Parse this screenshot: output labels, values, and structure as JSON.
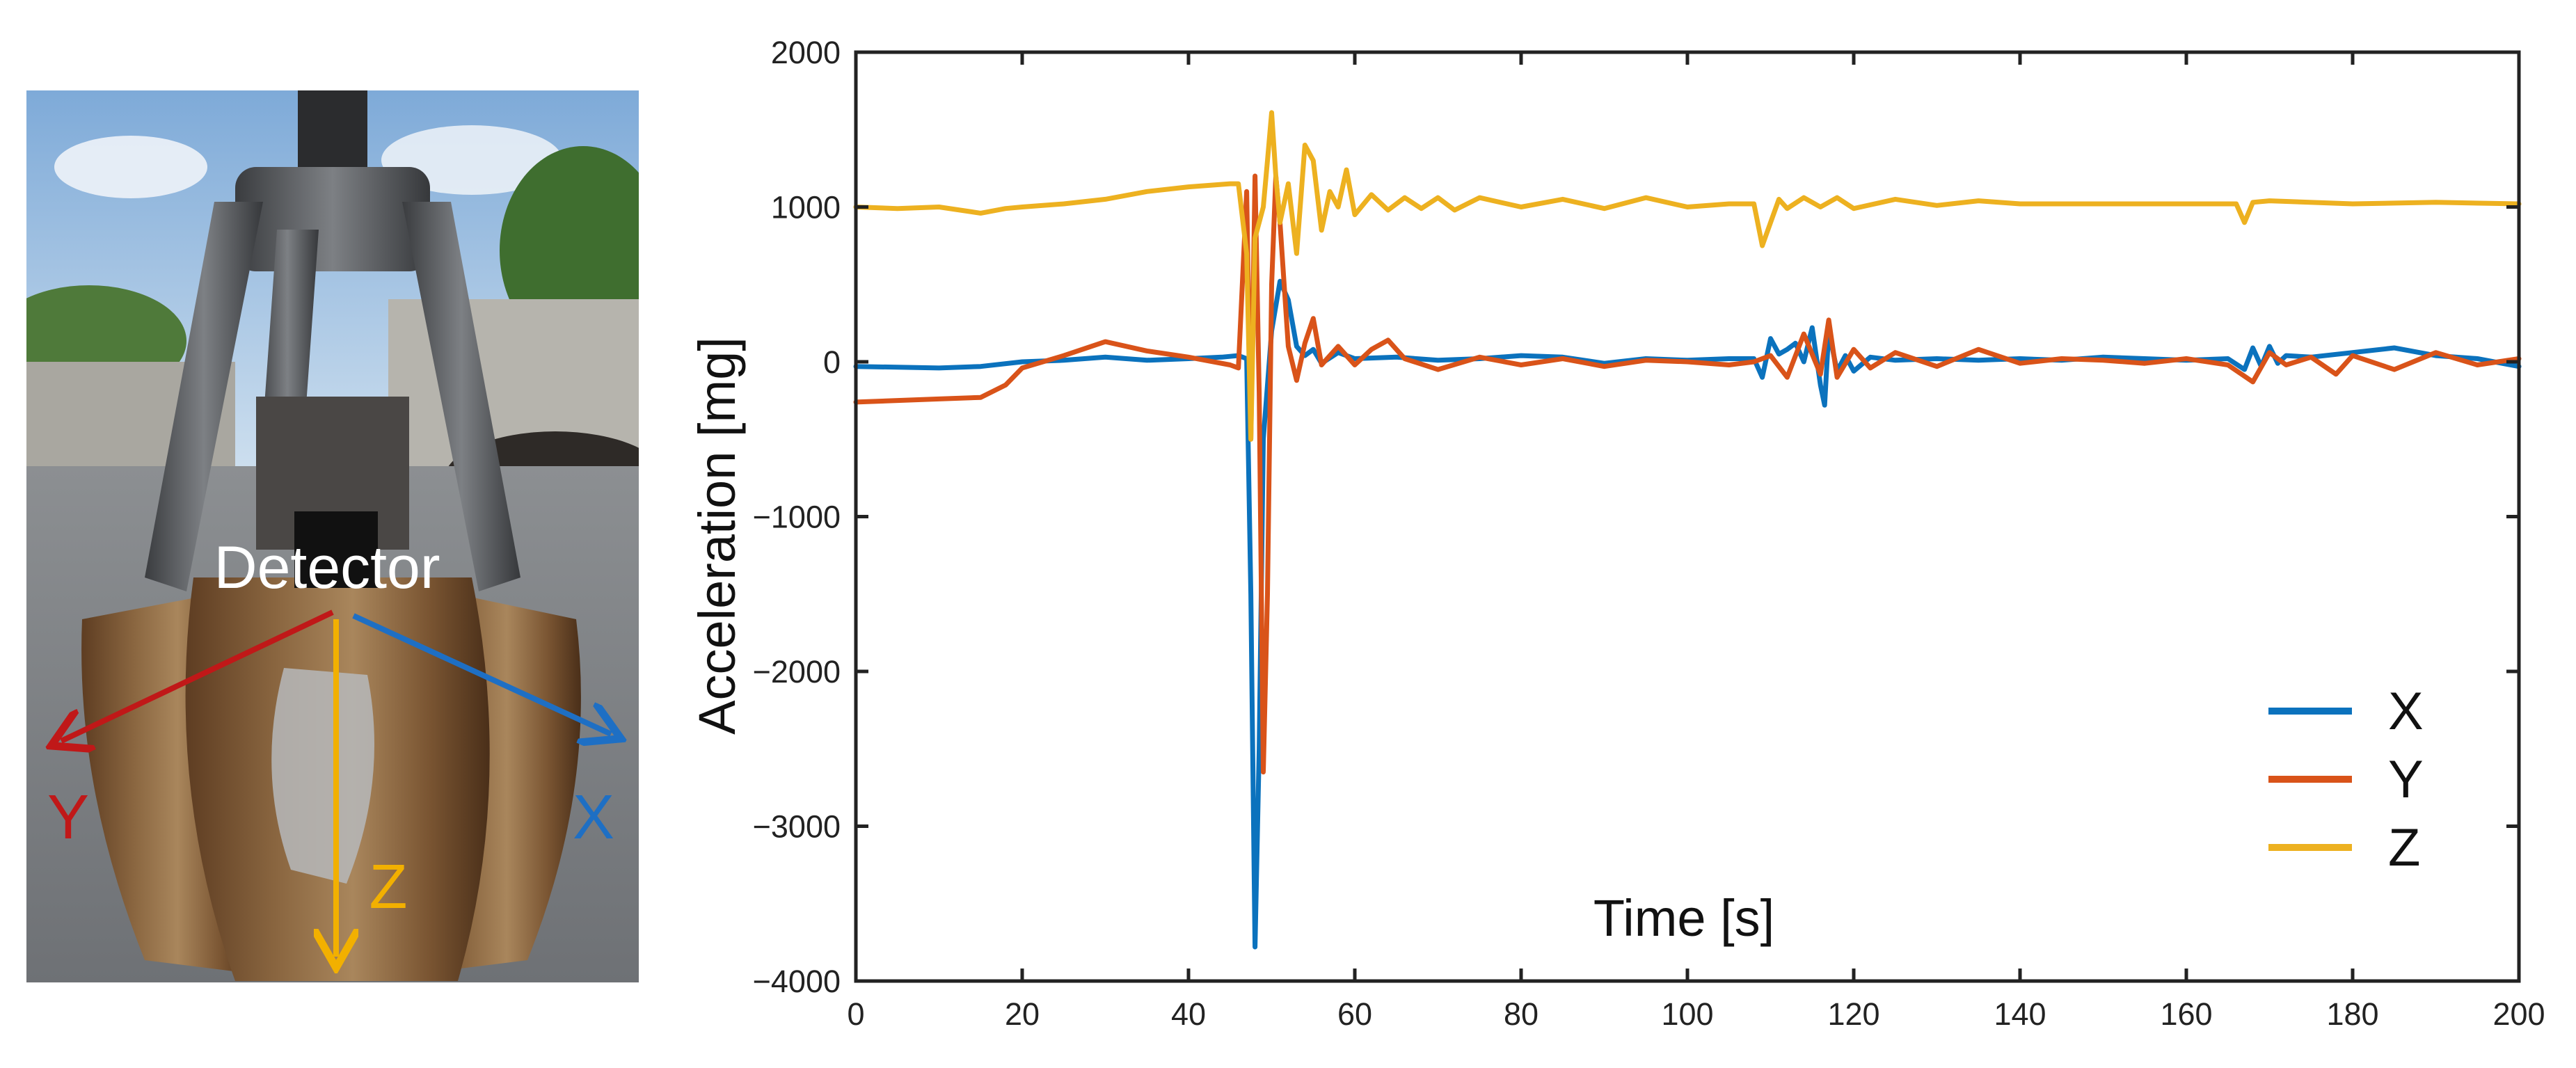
{
  "photo": {
    "detector_label": "Detector",
    "axis_x_label": "X",
    "axis_y_label": "Y",
    "axis_z_label": "Z",
    "colors": {
      "x_arrow": "#1e6fc4",
      "y_arrow": "#c01818",
      "z_arrow": "#f2b000",
      "detector_text": "#ffffff"
    }
  },
  "chart_data": {
    "type": "line",
    "title": "",
    "xlabel": "Time [s]",
    "ylabel": "Acceleration  [mg]",
    "xlim": [
      0,
      200
    ],
    "ylim": [
      -4000,
      2000
    ],
    "xticks": [
      0,
      20,
      40,
      60,
      80,
      100,
      120,
      140,
      160,
      180,
      200
    ],
    "yticks": [
      -4000,
      -3000,
      -2000,
      -1000,
      0,
      1000,
      2000
    ],
    "grid": false,
    "legend_position": "bottom-right",
    "series": [
      {
        "name": "X",
        "color": "#0b72bd",
        "points": [
          [
            0,
            -30
          ],
          [
            10,
            -40
          ],
          [
            15,
            -30
          ],
          [
            20,
            0
          ],
          [
            25,
            10
          ],
          [
            30,
            30
          ],
          [
            35,
            10
          ],
          [
            40,
            20
          ],
          [
            44,
            30
          ],
          [
            46,
            40
          ],
          [
            47,
            20
          ],
          [
            47.5,
            -1500
          ],
          [
            48,
            -3780
          ],
          [
            48.5,
            -2500
          ],
          [
            49,
            -500
          ],
          [
            50,
            200
          ],
          [
            51,
            520
          ],
          [
            52,
            400
          ],
          [
            53,
            100
          ],
          [
            54,
            40
          ],
          [
            55,
            80
          ],
          [
            56,
            -10
          ],
          [
            58,
            60
          ],
          [
            60,
            20
          ],
          [
            65,
            30
          ],
          [
            70,
            10
          ],
          [
            75,
            20
          ],
          [
            80,
            40
          ],
          [
            85,
            30
          ],
          [
            90,
            -10
          ],
          [
            95,
            20
          ],
          [
            100,
            10
          ],
          [
            105,
            20
          ],
          [
            108,
            20
          ],
          [
            109,
            -100
          ],
          [
            110,
            150
          ],
          [
            111,
            50
          ],
          [
            112,
            80
          ],
          [
            113,
            120
          ],
          [
            114,
            0
          ],
          [
            115,
            220
          ],
          [
            116,
            -150
          ],
          [
            116.5,
            -280
          ],
          [
            117,
            200
          ],
          [
            118,
            -60
          ],
          [
            119,
            40
          ],
          [
            120,
            -60
          ],
          [
            122,
            30
          ],
          [
            125,
            10
          ],
          [
            130,
            20
          ],
          [
            135,
            10
          ],
          [
            140,
            20
          ],
          [
            145,
            10
          ],
          [
            150,
            30
          ],
          [
            155,
            20
          ],
          [
            160,
            10
          ],
          [
            165,
            20
          ],
          [
            167,
            -50
          ],
          [
            168,
            90
          ],
          [
            169,
            -30
          ],
          [
            170,
            100
          ],
          [
            171,
            -10
          ],
          [
            172,
            40
          ],
          [
            175,
            30
          ],
          [
            180,
            60
          ],
          [
            185,
            90
          ],
          [
            190,
            40
          ],
          [
            195,
            20
          ],
          [
            200,
            -30
          ]
        ]
      },
      {
        "name": "Y",
        "color": "#d95319",
        "points": [
          [
            0,
            -260
          ],
          [
            5,
            -250
          ],
          [
            10,
            -240
          ],
          [
            15,
            -230
          ],
          [
            18,
            -150
          ],
          [
            20,
            -40
          ],
          [
            25,
            40
          ],
          [
            30,
            130
          ],
          [
            35,
            70
          ],
          [
            40,
            30
          ],
          [
            45,
            -20
          ],
          [
            46,
            -40
          ],
          [
            47,
            1100
          ],
          [
            47.5,
            -500
          ],
          [
            48,
            1200
          ],
          [
            48.5,
            -200
          ],
          [
            49,
            -2650
          ],
          [
            49.5,
            -1500
          ],
          [
            50,
            500
          ],
          [
            50.5,
            1200
          ],
          [
            51,
            900
          ],
          [
            52,
            100
          ],
          [
            53,
            -120
          ],
          [
            54,
            120
          ],
          [
            55,
            280
          ],
          [
            56,
            -20
          ],
          [
            58,
            100
          ],
          [
            60,
            -20
          ],
          [
            62,
            80
          ],
          [
            64,
            140
          ],
          [
            66,
            20
          ],
          [
            70,
            -50
          ],
          [
            75,
            30
          ],
          [
            80,
            -20
          ],
          [
            85,
            20
          ],
          [
            90,
            -30
          ],
          [
            95,
            10
          ],
          [
            100,
            0
          ],
          [
            105,
            -20
          ],
          [
            108,
            0
          ],
          [
            110,
            40
          ],
          [
            112,
            -100
          ],
          [
            114,
            180
          ],
          [
            116,
            -80
          ],
          [
            117,
            270
          ],
          [
            118,
            -100
          ],
          [
            120,
            80
          ],
          [
            122,
            -40
          ],
          [
            125,
            60
          ],
          [
            130,
            -30
          ],
          [
            135,
            80
          ],
          [
            140,
            -10
          ],
          [
            145,
            20
          ],
          [
            150,
            10
          ],
          [
            155,
            -10
          ],
          [
            160,
            20
          ],
          [
            165,
            -20
          ],
          [
            168,
            -130
          ],
          [
            170,
            60
          ],
          [
            172,
            -20
          ],
          [
            175,
            30
          ],
          [
            178,
            -80
          ],
          [
            180,
            40
          ],
          [
            185,
            -50
          ],
          [
            190,
            60
          ],
          [
            195,
            -20
          ],
          [
            200,
            20
          ]
        ]
      },
      {
        "name": "Z",
        "color": "#edb120",
        "points": [
          [
            0,
            1000
          ],
          [
            5,
            990
          ],
          [
            10,
            1000
          ],
          [
            15,
            960
          ],
          [
            18,
            990
          ],
          [
            20,
            1000
          ],
          [
            25,
            1020
          ],
          [
            30,
            1050
          ],
          [
            35,
            1100
          ],
          [
            40,
            1130
          ],
          [
            45,
            1150
          ],
          [
            46,
            1150
          ],
          [
            47,
            700
          ],
          [
            47.5,
            -500
          ],
          [
            48,
            800
          ],
          [
            49,
            1000
          ],
          [
            49.5,
            1300
          ],
          [
            50,
            1610
          ],
          [
            50.5,
            1200
          ],
          [
            51,
            900
          ],
          [
            52,
            1150
          ],
          [
            53,
            700
          ],
          [
            54,
            1400
          ],
          [
            55,
            1300
          ],
          [
            56,
            850
          ],
          [
            57,
            1100
          ],
          [
            58,
            1000
          ],
          [
            59,
            1240
          ],
          [
            60,
            950
          ],
          [
            62,
            1080
          ],
          [
            64,
            980
          ],
          [
            66,
            1060
          ],
          [
            68,
            990
          ],
          [
            70,
            1060
          ],
          [
            72,
            980
          ],
          [
            75,
            1060
          ],
          [
            80,
            1000
          ],
          [
            85,
            1050
          ],
          [
            90,
            990
          ],
          [
            95,
            1060
          ],
          [
            100,
            1000
          ],
          [
            105,
            1020
          ],
          [
            108,
            1020
          ],
          [
            109,
            750
          ],
          [
            110,
            900
          ],
          [
            111,
            1050
          ],
          [
            112,
            990
          ],
          [
            114,
            1060
          ],
          [
            116,
            1000
          ],
          [
            118,
            1060
          ],
          [
            120,
            990
          ],
          [
            125,
            1050
          ],
          [
            130,
            1010
          ],
          [
            135,
            1040
          ],
          [
            140,
            1020
          ],
          [
            150,
            1020
          ],
          [
            160,
            1020
          ],
          [
            166,
            1020
          ],
          [
            167,
            900
          ],
          [
            168,
            1030
          ],
          [
            170,
            1040
          ],
          [
            180,
            1020
          ],
          [
            190,
            1030
          ],
          [
            200,
            1020
          ]
        ]
      }
    ]
  }
}
